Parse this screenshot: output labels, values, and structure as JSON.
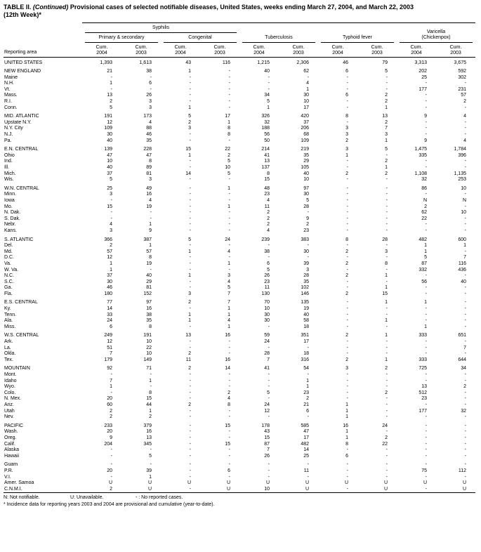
{
  "page": {
    "title": {
      "part1": "TABLE II. ",
      "continued": "(Continued)",
      "part2": " Provisional cases of selected notifiable diseases, United States, weeks ending March 27, 2004, and March 22, 2003",
      "line2": "(12th Week)*"
    },
    "footnotes": {
      "legend": [
        "N: Not notifiable.",
        "U: Unavailable.",
        "- : No reported cases."
      ],
      "note": "* Incidence data for reporting years 2003 and 2004 are provisional and cumulative (year-to-date)."
    }
  },
  "table": {
    "header": {
      "reporting_area": "Reporting area",
      "syphilis": "Syphilis",
      "primary_secondary": "Primary & secondary",
      "congenital": "Congenital",
      "tuberculosis": "Tuberculosis",
      "typhoid_fever": "Typhoid fever",
      "varicella": "Varicella",
      "varicella_sub": "(Chickenpox)",
      "cum": "Cum.",
      "years": [
        "2004",
        "2003",
        "2004",
        "2003",
        "2004",
        "2003",
        "2004",
        "2003",
        "2004",
        "2003"
      ]
    },
    "groups": [
      {
        "rows": [
          [
            "UNITED STATES",
            "1,393",
            "1,613",
            "43",
            "116",
            "1,215",
            "2,306",
            "46",
            "79",
            "3,313",
            "3,675"
          ]
        ]
      },
      {
        "rows": [
          [
            "NEW ENGLAND",
            "21",
            "38",
            "1",
            "-",
            "40",
            "62",
            "6",
            "5",
            "202",
            "592"
          ],
          [
            "Maine",
            "-",
            "-",
            "-",
            "-",
            "-",
            "-",
            "-",
            "-",
            "25",
            "302"
          ],
          [
            "N.H.",
            "1",
            "6",
            "-",
            "-",
            "-",
            "4",
            "-",
            "-",
            "-",
            "-"
          ],
          [
            "Vt.",
            "-",
            "-",
            "-",
            "-",
            "-",
            "1",
            "-",
            "-",
            "177",
            "231"
          ],
          [
            "Mass.",
            "13",
            "26",
            "-",
            "-",
            "34",
            "30",
            "6",
            "2",
            "-",
            "57"
          ],
          [
            "R.I.",
            "2",
            "3",
            "-",
            "-",
            "5",
            "10",
            "-",
            "2",
            "-",
            "2"
          ],
          [
            "Conn.",
            "5",
            "3",
            "1",
            "-",
            "1",
            "17",
            "-",
            "1",
            "-",
            "-"
          ]
        ]
      },
      {
        "rows": [
          [
            "MID. ATLANTIC",
            "191",
            "173",
            "5",
            "17",
            "326",
            "420",
            "8",
            "13",
            "9",
            "4"
          ],
          [
            "Upstate N.Y.",
            "12",
            "4",
            "2",
            "1",
            "32",
            "37",
            "-",
            "2",
            "-",
            "-"
          ],
          [
            "N.Y. City",
            "109",
            "88",
            "3",
            "8",
            "188",
            "206",
            "3",
            "7",
            "-",
            "-"
          ],
          [
            "N.J.",
            "30",
            "46",
            "-",
            "8",
            "56",
            "68",
            "3",
            "3",
            "-",
            "-"
          ],
          [
            "Pa.",
            "40",
            "35",
            "-",
            "-",
            "50",
            "109",
            "2",
            "1",
            "9",
            "4"
          ]
        ]
      },
      {
        "rows": [
          [
            "E.N. CENTRAL",
            "139",
            "228",
            "15",
            "22",
            "214",
            "219",
            "3",
            "5",
            "1,475",
            "1,784"
          ],
          [
            "Ohio",
            "47",
            "47",
            "1",
            "2",
            "41",
            "35",
            "1",
            "-",
            "335",
            "396"
          ],
          [
            "Ind.",
            "10",
            "8",
            "-",
            "5",
            "13",
            "29",
            "-",
            "2",
            "-",
            "-"
          ],
          [
            "Ill.",
            "40",
            "89",
            "-",
            "10",
            "137",
            "105",
            "-",
            "1",
            "-",
            "-"
          ],
          [
            "Mich.",
            "37",
            "81",
            "14",
            "5",
            "8",
            "40",
            "2",
            "2",
            "1,108",
            "1,135"
          ],
          [
            "Wis.",
            "5",
            "3",
            "-",
            "-",
            "15",
            "10",
            "-",
            "-",
            "32",
            "253"
          ]
        ]
      },
      {
        "rows": [
          [
            "W.N. CENTRAL",
            "25",
            "49",
            "-",
            "1",
            "48",
            "97",
            "-",
            "-",
            "86",
            "10"
          ],
          [
            "Minn.",
            "3",
            "16",
            "-",
            "-",
            "23",
            "30",
            "-",
            "-",
            "-",
            "-"
          ],
          [
            "Iowa",
            "-",
            "4",
            "-",
            "-",
            "4",
            "5",
            "-",
            "-",
            "N",
            "N"
          ],
          [
            "Mo.",
            "15",
            "19",
            "-",
            "1",
            "11",
            "28",
            "-",
            "-",
            "2",
            "-"
          ],
          [
            "N. Dak.",
            "-",
            "-",
            "-",
            "-",
            "2",
            "-",
            "-",
            "-",
            "62",
            "10"
          ],
          [
            "S. Dak.",
            "-",
            "-",
            "-",
            "-",
            "2",
            "9",
            "-",
            "-",
            "22",
            "-"
          ],
          [
            "Nebr.",
            "4",
            "1",
            "-",
            "-",
            "2",
            "2",
            "-",
            "-",
            "-",
            "-"
          ],
          [
            "Kans.",
            "3",
            "9",
            "-",
            "-",
            "4",
            "23",
            "-",
            "-",
            "-",
            "-"
          ]
        ]
      },
      {
        "rows": [
          [
            "S. ATLANTIC",
            "366",
            "387",
            "5",
            "24",
            "239",
            "383",
            "8",
            "28",
            "482",
            "600"
          ],
          [
            "Del.",
            "2",
            "1",
            "-",
            "-",
            "-",
            "-",
            "-",
            "-",
            "1",
            "1"
          ],
          [
            "Md.",
            "57",
            "57",
            "1",
            "4",
            "38",
            "30",
            "2",
            "3",
            "1",
            "-"
          ],
          [
            "D.C.",
            "12",
            "8",
            "-",
            "-",
            "-",
            "-",
            "-",
            "-",
            "5",
            "7"
          ],
          [
            "Va.",
            "1",
            "19",
            "-",
            "1",
            "6",
            "39",
            "2",
            "8",
            "87",
            "116"
          ],
          [
            "W. Va.",
            "1",
            "-",
            "-",
            "-",
            "5",
            "3",
            "-",
            "-",
            "332",
            "436"
          ],
          [
            "N.C.",
            "37",
            "40",
            "1",
            "3",
            "26",
            "28",
            "2",
            "1",
            "-",
            "-"
          ],
          [
            "S.C.",
            "30",
            "29",
            "-",
            "4",
            "23",
            "35",
            "-",
            "-",
            "56",
            "40"
          ],
          [
            "Ga.",
            "46",
            "81",
            "-",
            "5",
            "11",
            "102",
            "-",
            "1",
            "-",
            "-"
          ],
          [
            "Fla.",
            "180",
            "152",
            "3",
            "7",
            "130",
            "146",
            "2",
            "15",
            "-",
            "-"
          ]
        ]
      },
      {
        "rows": [
          [
            "E.S. CENTRAL",
            "77",
            "97",
            "2",
            "7",
            "70",
            "135",
            "-",
            "1",
            "1",
            "-"
          ],
          [
            "Ky.",
            "14",
            "16",
            "-",
            "1",
            "10",
            "19",
            "-",
            "-",
            "-",
            "-"
          ],
          [
            "Tenn.",
            "33",
            "38",
            "1",
            "1",
            "30",
            "40",
            "-",
            "-",
            "-",
            "-"
          ],
          [
            "Ala.",
            "24",
            "35",
            "1",
            "4",
            "30",
            "58",
            "-",
            "1",
            "-",
            "-"
          ],
          [
            "Miss.",
            "6",
            "8",
            "-",
            "1",
            "-",
            "18",
            "-",
            "-",
            "1",
            "-"
          ]
        ]
      },
      {
        "rows": [
          [
            "W.S. CENTRAL",
            "249",
            "191",
            "13",
            "16",
            "59",
            "351",
            "2",
            "1",
            "333",
            "651"
          ],
          [
            "Ark.",
            "12",
            "10",
            "-",
            "-",
            "24",
            "17",
            "-",
            "-",
            "-",
            "-"
          ],
          [
            "La.",
            "51",
            "22",
            "-",
            "-",
            "-",
            "-",
            "-",
            "-",
            "-",
            "7"
          ],
          [
            "Okla.",
            "7",
            "10",
            "2",
            "-",
            "28",
            "18",
            "-",
            "-",
            "-",
            "-"
          ],
          [
            "Tex.",
            "179",
            "149",
            "11",
            "16",
            "7",
            "316",
            "2",
            "1",
            "333",
            "644"
          ]
        ]
      },
      {
        "rows": [
          [
            "MOUNTAIN",
            "92",
            "71",
            "2",
            "14",
            "41",
            "54",
            "3",
            "2",
            "725",
            "34"
          ],
          [
            "Mont.",
            "-",
            "-",
            "-",
            "-",
            "-",
            "-",
            "-",
            "-",
            "-",
            "-"
          ],
          [
            "Idaho",
            "7",
            "1",
            "-",
            "-",
            "-",
            "1",
            "-",
            "-",
            "-",
            "-"
          ],
          [
            "Wyo.",
            "1",
            "-",
            "-",
            "-",
            "-",
            "1",
            "-",
            "-",
            "13",
            "2"
          ],
          [
            "Colo.",
            "-",
            "8",
            "-",
            "2",
            "5",
            "23",
            "-",
            "2",
            "512",
            "-"
          ],
          [
            "N. Mex.",
            "20",
            "15",
            "-",
            "4",
            "-",
            "2",
            "-",
            "-",
            "23",
            "-"
          ],
          [
            "Ariz.",
            "60",
            "44",
            "2",
            "8",
            "24",
            "21",
            "1",
            "-",
            "-",
            "-"
          ],
          [
            "Utah",
            "2",
            "1",
            "-",
            "-",
            "12",
            "6",
            "1",
            "-",
            "177",
            "32"
          ],
          [
            "Nev.",
            "2",
            "2",
            "-",
            "-",
            "-",
            "-",
            "1",
            "-",
            "-",
            "-"
          ]
        ]
      },
      {
        "rows": [
          [
            "PACIFIC",
            "233",
            "379",
            "-",
            "15",
            "178",
            "585",
            "16",
            "24",
            "-",
            "-"
          ],
          [
            "Wash.",
            "20",
            "16",
            "-",
            "-",
            "43",
            "47",
            "1",
            "-",
            "-",
            "-"
          ],
          [
            "Oreg.",
            "9",
            "13",
            "-",
            "-",
            "15",
            "17",
            "1",
            "2",
            "-",
            "-"
          ],
          [
            "Calif.",
            "204",
            "345",
            "-",
            "15",
            "87",
            "482",
            "8",
            "22",
            "-",
            "-"
          ],
          [
            "Alaska",
            "-",
            "-",
            "-",
            "-",
            "7",
            "14",
            "-",
            "-",
            "-",
            "-"
          ],
          [
            "Hawaii",
            "-",
            "5",
            "-",
            "-",
            "26",
            "25",
            "6",
            "-",
            "-",
            "-"
          ]
        ]
      },
      {
        "rows": [
          [
            "Guam",
            "-",
            "-",
            "-",
            "-",
            "-",
            "-",
            "-",
            "-",
            "-",
            "-"
          ],
          [
            "P.R.",
            "20",
            "39",
            "-",
            "6",
            "-",
            "11",
            "-",
            "-",
            "75",
            "112"
          ],
          [
            "V.I.",
            "-",
            "1",
            "-",
            "-",
            "-",
            "-",
            "-",
            "-",
            "-",
            "-"
          ],
          [
            "Amer. Samoa",
            "U",
            "U",
            "U",
            "U",
            "U",
            "U",
            "U",
            "U",
            "U",
            "U"
          ],
          [
            "C.N.M.I.",
            "2",
            "U",
            "-",
            "U",
            "10",
            "U",
            "-",
            "U",
            "-",
            "U"
          ]
        ]
      }
    ]
  }
}
